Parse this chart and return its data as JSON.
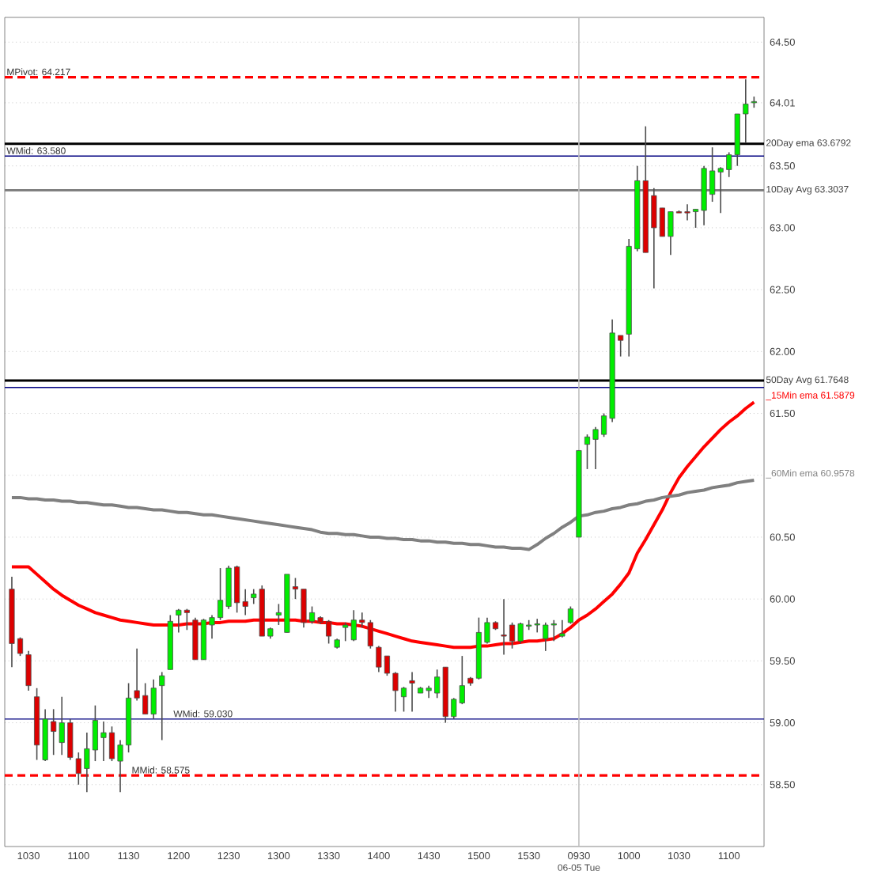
{
  "chart_data": {
    "type": "candlestick",
    "categories": [
      null,
      null,
      "1030",
      null,
      null,
      null,
      null,
      null,
      "1100",
      null,
      null,
      null,
      null,
      null,
      "1130",
      null,
      null,
      null,
      null,
      null,
      "1200",
      null,
      null,
      null,
      null,
      null,
      "1230",
      null,
      null,
      null,
      null,
      null,
      "1300",
      null,
      null,
      null,
      null,
      null,
      "1330",
      null,
      null,
      null,
      null,
      null,
      "1400",
      null,
      null,
      null,
      null,
      null,
      "1430",
      null,
      null,
      null,
      null,
      null,
      "1500",
      null,
      null,
      null,
      null,
      null,
      "1530",
      null,
      null,
      null,
      null,
      null,
      "0930",
      null,
      null,
      null,
      null,
      null,
      "1000",
      null,
      null,
      null,
      null,
      null,
      "1030",
      null,
      null,
      null,
      null,
      null,
      "1100",
      null,
      null,
      null
    ],
    "ohlc": [
      [
        60.08,
        60.18,
        59.45,
        59.64
      ],
      [
        59.68,
        59.69,
        59.54,
        59.56
      ],
      [
        59.55,
        59.58,
        59.26,
        59.3
      ],
      [
        59.21,
        59.28,
        58.7,
        58.82
      ],
      [
        58.7,
        59.11,
        58.69,
        59.03
      ],
      [
        59.01,
        59.11,
        58.74,
        58.93
      ],
      [
        58.84,
        59.21,
        58.74,
        59.0
      ],
      [
        59.0,
        59.03,
        58.7,
        58.72
      ],
      [
        58.71,
        58.76,
        58.5,
        58.59
      ],
      [
        58.63,
        58.92,
        58.44,
        58.79
      ],
      [
        58.78,
        59.14,
        58.69,
        59.02
      ],
      [
        58.88,
        59.01,
        58.69,
        58.92
      ],
      [
        58.92,
        58.97,
        58.69,
        58.71
      ],
      [
        58.69,
        58.86,
        58.44,
        58.82
      ],
      [
        58.82,
        59.32,
        58.76,
        59.2
      ],
      [
        59.26,
        59.6,
        59.18,
        59.2
      ],
      [
        59.22,
        59.32,
        59.07,
        59.07
      ],
      [
        59.07,
        59.35,
        59.03,
        59.28
      ],
      [
        59.3,
        59.41,
        58.86,
        59.38
      ],
      [
        59.43,
        59.87,
        59.43,
        59.82
      ],
      [
        59.87,
        59.92,
        59.73,
        59.91
      ],
      [
        59.91,
        59.92,
        59.75,
        59.89
      ],
      [
        59.83,
        59.85,
        59.51,
        59.51
      ],
      [
        59.51,
        59.84,
        59.51,
        59.83
      ],
      [
        59.79,
        59.87,
        59.68,
        59.85
      ],
      [
        59.85,
        60.25,
        59.83,
        59.99
      ],
      [
        59.94,
        60.27,
        59.92,
        60.25
      ],
      [
        60.26,
        60.27,
        59.89,
        59.97
      ],
      [
        59.98,
        60.08,
        59.87,
        59.94
      ],
      [
        60.01,
        60.08,
        59.96,
        60.04
      ],
      [
        60.08,
        60.11,
        59.7,
        59.7
      ],
      [
        59.7,
        59.77,
        59.68,
        59.76
      ],
      [
        59.87,
        59.96,
        59.79,
        59.89
      ],
      [
        59.73,
        60.2,
        59.73,
        60.2
      ],
      [
        60.1,
        60.17,
        60.0,
        60.08
      ],
      [
        60.08,
        60.08,
        59.77,
        59.81
      ],
      [
        59.82,
        59.94,
        59.8,
        59.89
      ],
      [
        59.85,
        59.86,
        59.8,
        59.81
      ],
      [
        59.82,
        59.83,
        59.64,
        59.7
      ],
      [
        59.61,
        59.68,
        59.6,
        59.67
      ],
      [
        59.77,
        59.81,
        59.66,
        59.79
      ],
      [
        59.67,
        59.91,
        59.66,
        59.83
      ],
      [
        59.83,
        59.89,
        59.77,
        59.81
      ],
      [
        59.81,
        59.83,
        59.6,
        59.62
      ],
      [
        59.61,
        59.62,
        59.41,
        59.45
      ],
      [
        59.54,
        59.54,
        59.38,
        59.4
      ],
      [
        59.4,
        59.41,
        59.09,
        59.26
      ],
      [
        59.21,
        59.29,
        59.09,
        59.28
      ],
      [
        59.34,
        59.41,
        59.09,
        59.32
      ],
      [
        59.24,
        59.29,
        59.24,
        59.28
      ],
      [
        59.26,
        59.3,
        59.2,
        59.28
      ],
      [
        59.24,
        59.43,
        59.2,
        59.37
      ],
      [
        59.45,
        59.45,
        59.0,
        59.05
      ],
      [
        59.05,
        59.2,
        59.03,
        59.19
      ],
      [
        59.16,
        59.54,
        59.15,
        59.3
      ],
      [
        59.36,
        59.37,
        59.3,
        59.32
      ],
      [
        59.36,
        59.85,
        59.35,
        59.73
      ],
      [
        59.65,
        59.85,
        59.64,
        59.81
      ],
      [
        59.81,
        59.82,
        59.75,
        59.76
      ],
      [
        59.71,
        60.0,
        59.55,
        59.7
      ],
      [
        59.79,
        59.81,
        59.6,
        59.66
      ],
      [
        59.66,
        59.81,
        59.64,
        59.8
      ],
      [
        59.78,
        59.83,
        59.75,
        59.79
      ],
      [
        59.79,
        59.84,
        59.73,
        59.8
      ],
      [
        59.68,
        59.81,
        59.58,
        59.79
      ],
      [
        59.79,
        59.83,
        59.66,
        59.8
      ],
      [
        59.7,
        59.83,
        59.69,
        59.72
      ],
      [
        59.81,
        59.94,
        59.8,
        59.92
      ],
      [
        60.5,
        61.2,
        60.5,
        61.2
      ],
      [
        61.25,
        61.33,
        61.05,
        61.31
      ],
      [
        61.29,
        61.39,
        61.05,
        61.37
      ],
      [
        61.33,
        61.5,
        61.31,
        61.48
      ],
      [
        61.46,
        62.26,
        61.43,
        62.15
      ],
      [
        62.13,
        62.13,
        61.96,
        62.09
      ],
      [
        62.14,
        62.91,
        61.96,
        62.85
      ],
      [
        62.83,
        63.5,
        62.81,
        63.38
      ],
      [
        63.38,
        63.82,
        62.8,
        62.8
      ],
      [
        63.26,
        63.32,
        62.51,
        63.0
      ],
      [
        63.16,
        63.16,
        62.93,
        62.93
      ],
      [
        62.93,
        63.13,
        62.78,
        63.13
      ],
      [
        63.13,
        63.14,
        63.12,
        63.12
      ],
      [
        63.13,
        63.19,
        63.06,
        63.12
      ],
      [
        63.13,
        63.15,
        63.0,
        63.15
      ],
      [
        63.14,
        63.5,
        63.02,
        63.48
      ],
      [
        63.27,
        63.65,
        63.21,
        63.46
      ],
      [
        63.45,
        63.49,
        63.12,
        63.48
      ],
      [
        63.47,
        63.61,
        63.41,
        63.59
      ],
      [
        63.59,
        63.92,
        63.5,
        63.92
      ],
      [
        63.92,
        64.2,
        63.69,
        64.0
      ],
      [
        64.01,
        64.06,
        63.97,
        64.02
      ]
    ],
    "colors": [
      "#dd0000",
      "#dd0000",
      "#dd0000",
      "#dd0000",
      "#00ee00",
      "#dd0000",
      "#00ee00",
      "#dd0000",
      "#dd0000",
      "#00ee00",
      "#00ee00",
      "#00ee00",
      "#dd0000",
      "#00ee00",
      "#00ee00",
      "#dd0000",
      "#dd0000",
      "#00ee00",
      "#00ee00",
      "#00ee00",
      "#00ee00",
      "#dd0000",
      "#dd0000",
      "#00ee00",
      "#00ee00",
      "#00ee00",
      "#00ee00",
      "#dd0000",
      "#dd0000",
      "#00ee00",
      "#dd0000",
      "#00ee00",
      "#00ee00",
      "#00ee00",
      "#dd0000",
      "#dd0000",
      "#00ee00",
      "#dd0000",
      "#dd0000",
      "#00ee00",
      "#00ee00",
      "#00ee00",
      "#dd0000",
      "#dd0000",
      "#dd0000",
      "#dd0000",
      "#dd0000",
      "#00ee00",
      "#dd0000",
      "#00ee00",
      "#00ee00",
      "#00ee00",
      "#dd0000",
      "#00ee00",
      "#00ee00",
      "#dd0000",
      "#00ee00",
      "#00ee00",
      "#dd0000",
      "#dd0000",
      "#dd0000",
      "#00ee00",
      "#00ee00",
      "#00ee00",
      "#00ee00",
      "#00ee00",
      "#00ee00",
      "#00ee00",
      "#00ee00",
      "#00ee00",
      "#00ee00",
      "#00ee00",
      "#00ee00",
      "#dd0000",
      "#00ee00",
      "#00ee00",
      "#dd0000",
      "#dd0000",
      "#dd0000",
      "#00ee00",
      "#dd0000",
      "#dd0000",
      "#00ee00",
      "#00ee00",
      "#00ee00",
      "#00ee00",
      "#00ee00",
      "#00ee00",
      "#00ee00",
      "#00ee00"
    ],
    "series": [
      {
        "name": "_15Min ema 61.5879",
        "type": "line",
        "color": "#ff0000",
        "values": [
          60.26,
          60.26,
          60.26,
          60.2,
          60.14,
          60.08,
          60.03,
          59.99,
          59.95,
          59.92,
          59.89,
          59.87,
          59.85,
          59.83,
          59.82,
          59.81,
          59.8,
          59.79,
          59.79,
          59.79,
          59.79,
          59.8,
          59.8,
          59.8,
          59.81,
          59.81,
          59.82,
          59.82,
          59.82,
          59.83,
          59.83,
          59.83,
          59.83,
          59.83,
          59.83,
          59.82,
          59.82,
          59.81,
          59.81,
          59.8,
          59.8,
          59.79,
          59.78,
          59.76,
          59.74,
          59.72,
          59.7,
          59.68,
          59.66,
          59.65,
          59.64,
          59.63,
          59.62,
          59.61,
          59.61,
          59.61,
          59.62,
          59.62,
          59.63,
          59.64,
          59.64,
          59.65,
          59.66,
          59.66,
          59.67,
          59.68,
          59.72,
          59.77,
          59.83,
          59.87,
          59.92,
          59.98,
          60.04,
          60.12,
          60.21,
          60.37,
          60.48,
          60.6,
          60.72,
          60.86,
          60.98,
          61.07,
          61.15,
          61.23,
          61.3,
          61.37,
          61.43,
          61.48,
          61.54,
          61.59
        ]
      },
      {
        "name": "_60Min ema 60.9578",
        "type": "line",
        "color": "#808080",
        "values": [
          60.82,
          60.82,
          60.81,
          60.81,
          60.8,
          60.8,
          60.79,
          60.79,
          60.78,
          60.78,
          60.77,
          60.76,
          60.76,
          60.75,
          60.74,
          60.74,
          60.73,
          60.72,
          60.72,
          60.71,
          60.7,
          60.7,
          60.69,
          60.68,
          60.68,
          60.67,
          60.66,
          60.65,
          60.64,
          60.63,
          60.62,
          60.61,
          60.6,
          60.59,
          60.58,
          60.57,
          60.56,
          60.54,
          60.53,
          60.53,
          60.52,
          60.52,
          60.51,
          60.5,
          60.5,
          60.49,
          60.49,
          60.48,
          60.48,
          60.47,
          60.47,
          60.46,
          60.46,
          60.45,
          60.45,
          60.44,
          60.44,
          60.43,
          60.42,
          60.42,
          60.41,
          60.41,
          60.4,
          60.44,
          60.49,
          60.53,
          60.58,
          60.62,
          60.67,
          60.68,
          60.7,
          60.71,
          60.73,
          60.74,
          60.76,
          60.77,
          60.79,
          60.8,
          60.82,
          60.83,
          60.84,
          60.86,
          60.87,
          60.88,
          60.9,
          60.91,
          60.92,
          60.94,
          60.95,
          60.96
        ]
      }
    ],
    "ref_lines": [
      {
        "axis": "y",
        "value": 64.217,
        "label": "MPivot: 64.217",
        "color": "#ff0000",
        "line_style": "dashed"
      },
      {
        "axis": "y",
        "value": 63.6792,
        "label": "20Day ema 63.6792",
        "color": "#000000",
        "line_style": "solid"
      },
      {
        "axis": "y",
        "value": 63.58,
        "label": "WMid: 63.580",
        "color": "#000080",
        "line_style": "solid"
      },
      {
        "axis": "y",
        "value": 63.3037,
        "label": "10Day Avg 63.3037",
        "color": "#808080",
        "line_style": "solid"
      },
      {
        "axis": "y",
        "value": 61.7648,
        "label": "50Day Avg 61.7648",
        "color": "#000000",
        "line_style": "solid"
      },
      {
        "axis": "y",
        "value": 61.71,
        "color": "#000080",
        "line_style": "solid"
      },
      {
        "axis": "y",
        "value": 59.03,
        "label": "WMid: 59.030",
        "color": "#000080",
        "line_style": "solid"
      },
      {
        "axis": "y",
        "value": 58.575,
        "label": "MMid: 58.575",
        "color": "#ff0000",
        "line_style": "dashed"
      },
      {
        "axis": "x",
        "value": "0930",
        "color": "#c0c0c0",
        "line_style": "solid"
      }
    ],
    "annotations": [
      "06-05 Tue"
    ],
    "ylim": [
      58.0,
      64.7
    ],
    "yticks": [
      {
        "value": 58.5,
        "label": "58.50"
      },
      {
        "value": 59,
        "label": "59.00"
      },
      {
        "value": 59.5,
        "label": "59.50"
      },
      {
        "value": 60,
        "label": "60.00"
      },
      {
        "value": 60.5,
        "label": "60.50"
      },
      {
        "value": 61,
        "label": null
      },
      {
        "value": 61.5,
        "label": "61.50"
      },
      {
        "value": 62,
        "label": "62.00"
      },
      {
        "value": 62.5,
        "label": "62.50"
      },
      {
        "value": 63,
        "label": "63.00"
      },
      {
        "value": 63.5,
        "label": "63.50"
      },
      {
        "value": 64.01,
        "label": "64.01"
      },
      {
        "value": 64.5,
        "label": "64.50"
      }
    ],
    "grid": "y"
  }
}
